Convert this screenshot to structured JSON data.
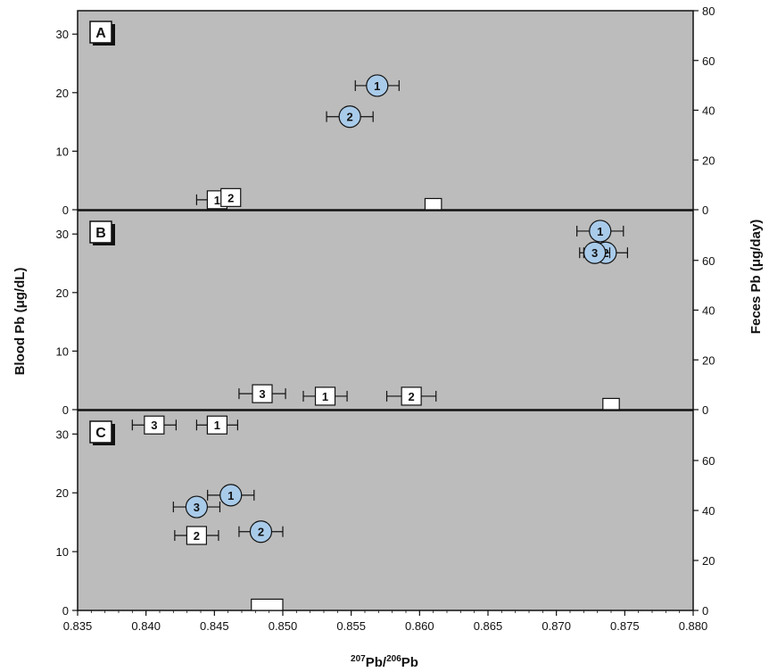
{
  "chart_data": {
    "type": "scatter",
    "xlabel_main": "Pb/",
    "xlabel_sup1": "207",
    "xlabel_sup2": "206",
    "xlabel_tail": "Pb",
    "ylabel_left": "Blood Pb (μg/dL)",
    "ylabel_right": "Feces Pb (μg/day)",
    "xlim": [
      0.835,
      0.88
    ],
    "xticks": [
      "0.835",
      "0.840",
      "0.845",
      "0.850",
      "0.855",
      "0.860",
      "0.865",
      "0.870",
      "0.875",
      "0.880"
    ],
    "left_ylim": [
      0,
      34
    ],
    "left_yticks": [
      0,
      10,
      20,
      30
    ],
    "right_ylim": [
      0,
      80
    ],
    "right_yticks": [
      0,
      20,
      40,
      60,
      80
    ],
    "colors": {
      "panel_bg": "#bcbcbc",
      "blood_marker": "#a9cbea",
      "feces_marker": "#ffffff"
    },
    "panels": [
      {
        "label": "A",
        "blood": [
          {
            "id": "1",
            "x": 0.8569,
            "xerr": 0.0016,
            "y": 21.2
          },
          {
            "id": "2",
            "x": 0.8549,
            "xerr": 0.0017,
            "y": 15.9
          }
        ],
        "feces": [
          {
            "id": "1",
            "x": 0.8452,
            "xerr": 0.0015,
            "y": 4.0
          },
          {
            "id": "2",
            "x": 0.8462,
            "xerr": 0.0006,
            "y": 4.9
          }
        ],
        "bar": {
          "x_start": 0.8604,
          "x_end": 0.8616,
          "y": 4.5
        }
      },
      {
        "label": "B",
        "blood": [
          {
            "id": "1",
            "x": 0.8732,
            "xerr": 0.0017,
            "y": 30.5
          },
          {
            "id": "2",
            "x": 0.8736,
            "xerr": 0.0016,
            "y": 26.8
          },
          {
            "id": "3",
            "x": 0.8728,
            "xerr": 0.0011,
            "y": 26.8
          }
        ],
        "feces": [
          {
            "id": "3",
            "x": 0.8485,
            "xerr": 0.0017,
            "y": 6.4
          },
          {
            "id": "1",
            "x": 0.8531,
            "xerr": 0.0016,
            "y": 5.4
          },
          {
            "id": "2",
            "x": 0.8594,
            "xerr": 0.0018,
            "y": 5.4
          }
        ],
        "bar": {
          "x_start": 0.8734,
          "x_end": 0.8746,
          "y": 4.5
        }
      },
      {
        "label": "C",
        "blood": [
          {
            "id": "1",
            "x": 0.8462,
            "xerr": 0.0017,
            "y": 19.6
          },
          {
            "id": "3",
            "x": 0.8437,
            "xerr": 0.0017,
            "y": 17.6
          },
          {
            "id": "2",
            "x": 0.8484,
            "xerr": 0.0016,
            "y": 13.4
          }
        ],
        "feces": [
          {
            "id": "3",
            "x": 0.8406,
            "xerr": 0.0016,
            "y": 74.2
          },
          {
            "id": "1",
            "x": 0.8452,
            "xerr": 0.0015,
            "y": 74.2
          },
          {
            "id": "2",
            "x": 0.8437,
            "xerr": 0.0016,
            "y": 30.0
          }
        ],
        "bar": {
          "x_start": 0.8477,
          "x_end": 0.85,
          "y": 4.5
        }
      }
    ]
  }
}
